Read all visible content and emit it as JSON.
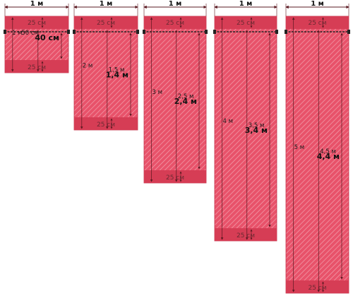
{
  "panels": [
    {
      "width_label": "1 м",
      "top_margin": "25 см",
      "bottom_margin": "25 см",
      "total_length": "1 м",
      "inner_length": "50 см",
      "fabric_length": "40 см"
    },
    {
      "width_label": "1 м",
      "top_margin": "25 см",
      "bottom_margin": "25 см",
      "total_length": "2 м",
      "inner_length": "1,5 м",
      "fabric_length": "1,4 м"
    },
    {
      "width_label": "1 м",
      "top_margin": "25 см",
      "bottom_margin": "25 см",
      "total_length": "3 м",
      "inner_length": "2,5 м",
      "fabric_length": "2,4 м"
    },
    {
      "width_label": "1 м",
      "top_margin": "25 см",
      "bottom_margin": "25 см",
      "total_length": "4 м",
      "inner_length": "3,5 м",
      "fabric_length": "3,4 м"
    },
    {
      "width_label": "1 м",
      "top_margin": "25 см",
      "bottom_margin": "25 см",
      "total_length": "5 м",
      "inner_length": "4,5 м",
      "fabric_length": "4,4 м"
    }
  ],
  "colors": {
    "panel_fill": "#e8526a",
    "band_fill": "#d63d55",
    "hatch": "#f2a3b0",
    "dim_line": "#5a1820",
    "rod": "#222222"
  }
}
